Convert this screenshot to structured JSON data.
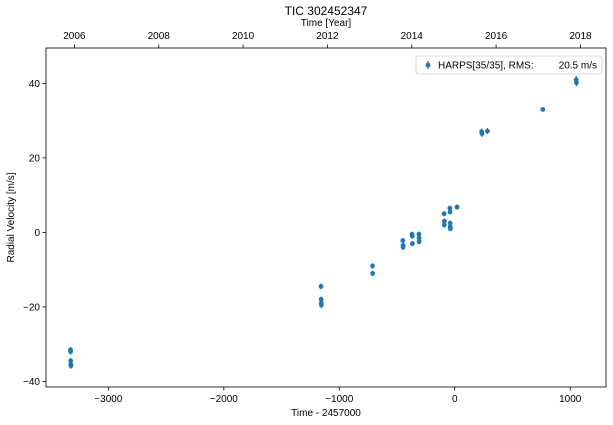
{
  "chart_data": {
    "type": "scatter",
    "title": "TIC 302452347",
    "xlabel": "Time - 2457000",
    "ylabel": "Radial Velocity [m/s]",
    "x2label": "Time [Year]",
    "xlim": [
      -3540,
      1310
    ],
    "ylim": [
      -41.5,
      49.5
    ],
    "xticks": [
      -3000,
      -2000,
      -1000,
      0,
      1000
    ],
    "xtick_labels": [
      "−3000",
      "−2000",
      "−1000",
      "0",
      "1000"
    ],
    "yticks": [
      -40,
      -20,
      0,
      20,
      40
    ],
    "ytick_labels": [
      "−40",
      "−20",
      "0",
      "20",
      "40"
    ],
    "x2ticks": [
      "2006",
      "2008",
      "2010",
      "2012",
      "2014",
      "2016",
      "2018"
    ],
    "grid": false,
    "legend_position": "top-right",
    "legend": {
      "label": "HARPS[35/35], RMS:",
      "rms": "20.5 m/s"
    },
    "series": [
      {
        "name": "HARPS[35/35], RMS:",
        "color": "#1f77b4",
        "x": [
          -3328,
          -3327,
          -3326,
          -3325,
          -3324,
          -1158,
          -1157,
          -1156,
          -1155,
          -712,
          -711,
          -450,
          -448,
          -447,
          -370,
          -368,
          -367,
          -310,
          -309,
          -308,
          -92,
          -91,
          -90,
          -42,
          -41,
          -40,
          -39,
          -38,
          20,
          233,
          236,
          283,
          763,
          1052,
          1054
        ],
        "y": [
          -31.5,
          -32.0,
          -34.5,
          -35.5,
          -35.8,
          -14.5,
          -18.0,
          -19.0,
          -19.5,
          -9.0,
          -11.0,
          -2.2,
          -3.5,
          -4.0,
          -0.5,
          -1.0,
          -3.0,
          -0.5,
          -1.5,
          -2.5,
          5.0,
          2.0,
          3.0,
          6.5,
          5.5,
          2.5,
          1.5,
          1.0,
          6.8,
          27.0,
          26.5,
          27.2,
          33.0,
          41.0,
          40.2
        ],
        "yerr": [
          0.8,
          0.8,
          0.8,
          0.8,
          0.8,
          0.8,
          0.8,
          0.8,
          0.8,
          0.7,
          0.7,
          0.7,
          0.7,
          0.7,
          0.7,
          0.7,
          0.7,
          0.7,
          0.7,
          0.7,
          0.7,
          0.7,
          0.7,
          0.7,
          0.7,
          0.7,
          0.7,
          0.7,
          0.7,
          0.9,
          0.9,
          0.8,
          0.5,
          1.0,
          1.0
        ]
      }
    ]
  }
}
